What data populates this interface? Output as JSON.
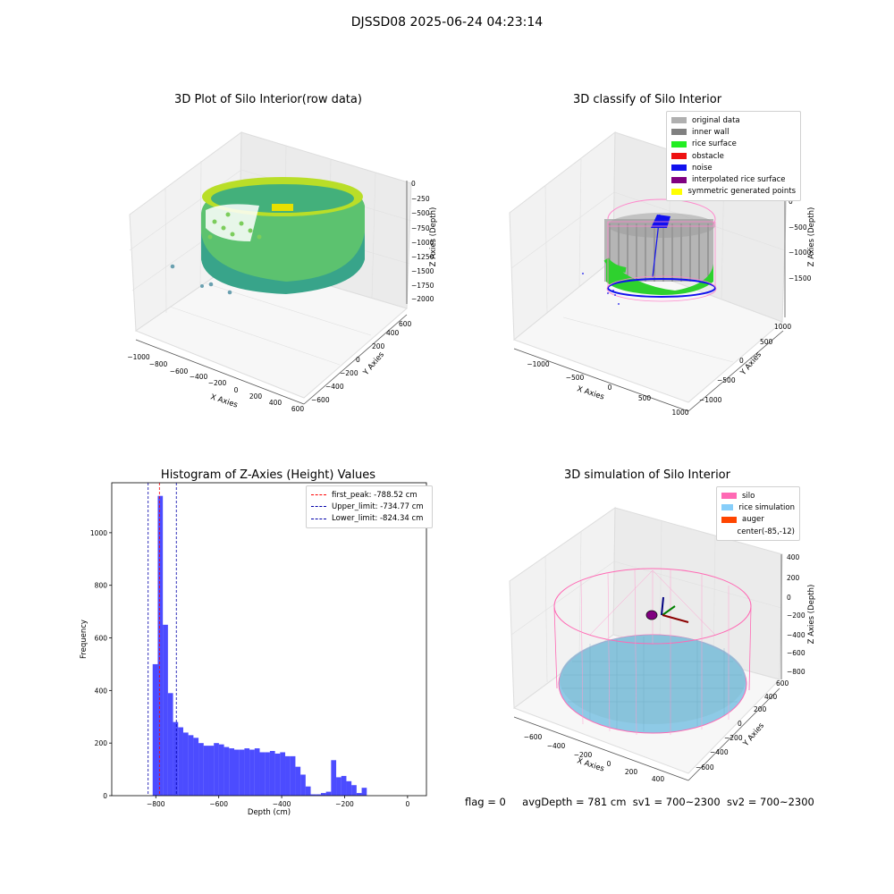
{
  "figure": {
    "suptitle": "DJSSD08 2025-06-24 04:23:14",
    "footer": {
      "flag": "flag = 0",
      "avg_depth": "avgDepth = 781 cm",
      "sv1": "sv1 = 700~2300",
      "sv2": "sv2 = 700~2300"
    }
  },
  "panels": {
    "raw": {
      "title": "3D Plot of Silo Interior(row data)",
      "xlabel": "X Axies",
      "ylabel": "Y Axies",
      "zlabel": "Z Axies (Depth)",
      "xticks": [
        "−1000",
        "−800",
        "−600",
        "−400",
        "−200",
        "0",
        "200",
        "400",
        "600"
      ],
      "yticks": [
        "−600",
        "−400",
        "−200",
        "0",
        "200",
        "400",
        "600"
      ],
      "zticks": [
        "0",
        "−250",
        "−500",
        "−750",
        "−1000",
        "−1250",
        "−1500",
        "−1750",
        "−2000"
      ]
    },
    "classify": {
      "title": "3D classify of Silo Interior",
      "xlabel": "X Axies",
      "ylabel": "Y Axies",
      "zlabel": "Z Axies (Depth)",
      "xticks": [
        "−1000",
        "−500",
        "0",
        "500",
        "1000"
      ],
      "yticks": [
        "−1000",
        "−500",
        "0",
        "500",
        "1000"
      ],
      "zticks": [
        "0",
        "−500",
        "−1000",
        "−1500"
      ],
      "legend": [
        {
          "label": "original data",
          "color": "#b0b0b0"
        },
        {
          "label": "inner wall",
          "color": "#808080"
        },
        {
          "label": "rice surface",
          "color": "#22ee22"
        },
        {
          "label": "obstacle",
          "color": "#ee1111"
        },
        {
          "label": "noise",
          "color": "#1111ee"
        },
        {
          "label": "interpolated rice surface",
          "color": "#800080"
        },
        {
          "label": "symmetric generated points",
          "color": "#ffff00"
        }
      ]
    },
    "simulation": {
      "title": "3D simulation of Silo Interior",
      "xlabel": "X Axies",
      "ylabel": "Y Axies",
      "zlabel": "Z Axies (Depth)",
      "xticks": [
        "−600",
        "−400",
        "−200",
        "0",
        "200",
        "400"
      ],
      "yticks": [
        "−600",
        "−400",
        "−200",
        "0",
        "200",
        "400",
        "600"
      ],
      "zticks": [
        "400",
        "200",
        "0",
        "−200",
        "−400",
        "−600",
        "−800"
      ],
      "legend": [
        {
          "label": "silo",
          "color": "#ff69b4"
        },
        {
          "label": "rice simulation",
          "color": "#87cefa"
        },
        {
          "label": "auger",
          "color": "#ff4500"
        },
        {
          "label": "center(-85,-12)",
          "color": ""
        }
      ]
    }
  },
  "chart_data": [
    {
      "type": "bar",
      "title": "Histogram of Z-Axies (Height) Values",
      "xlabel": "Depth (cm)",
      "ylabel": "Frequency",
      "xlim": [
        -940,
        60
      ],
      "ylim": [
        0,
        1190
      ],
      "xticks": [
        -800,
        -600,
        -400,
        -200,
        0
      ],
      "yticks": [
        0,
        200,
        400,
        600,
        800,
        1000
      ],
      "bin_width": 16.2,
      "bin_start": -810,
      "values": [
        500,
        1140,
        650,
        390,
        280,
        260,
        240,
        230,
        220,
        200,
        190,
        190,
        200,
        195,
        185,
        180,
        175,
        175,
        180,
        175,
        180,
        165,
        165,
        170,
        160,
        165,
        150,
        150,
        110,
        80,
        35,
        5,
        5,
        10,
        15,
        135,
        70,
        75,
        55,
        40,
        10,
        30
      ],
      "bar_color": "#0000ff",
      "bar_alpha": 0.7,
      "vlines": [
        {
          "label": "first_peak: -788.52 cm",
          "x": -788.52,
          "color": "#ff0000"
        },
        {
          "label": "Upper_limit: -734.77 cm",
          "x": -734.77,
          "color": "#0000aa"
        },
        {
          "label": "Lower_limit: -824.34 cm",
          "x": -824.34,
          "color": "#0000aa"
        }
      ],
      "legend_position": "top-right"
    }
  ]
}
